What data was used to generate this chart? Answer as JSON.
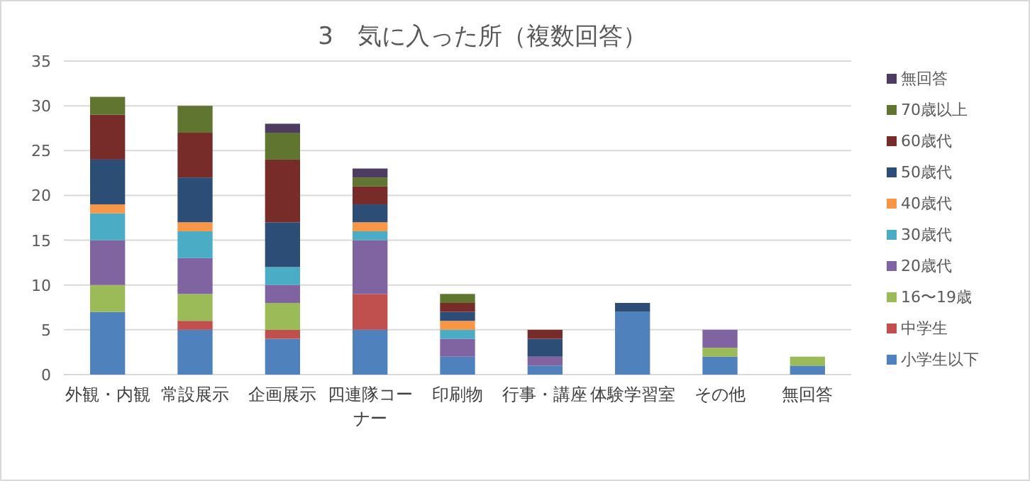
{
  "chart_data": {
    "type": "bar",
    "stacked": true,
    "title": "3　気に入った所（複数回答）",
    "categories": [
      "外観・内観",
      "常設展示",
      "企画展示",
      "四連隊コーナー",
      "印刷物",
      "行事・講座",
      "体験学習室",
      "その他",
      "無回答"
    ],
    "series": [
      {
        "name": "小学生以下",
        "color": "#4f81bd",
        "values": [
          7,
          5,
          4,
          5,
          2,
          1,
          7,
          2,
          1
        ]
      },
      {
        "name": "中学生",
        "color": "#c0504d",
        "values": [
          0,
          1,
          1,
          4,
          0,
          0,
          0,
          0,
          0
        ]
      },
      {
        "name": "16〜19歳",
        "color": "#9bbb59",
        "values": [
          3,
          3,
          3,
          0,
          0,
          0,
          0,
          1,
          1
        ]
      },
      {
        "name": "20歳代",
        "color": "#8064a2",
        "values": [
          5,
          4,
          2,
          6,
          2,
          1,
          0,
          2,
          0
        ]
      },
      {
        "name": "30歳代",
        "color": "#4bacc6",
        "values": [
          3,
          3,
          2,
          1,
          1,
          0,
          0,
          0,
          0
        ]
      },
      {
        "name": "40歳代",
        "color": "#f79646",
        "values": [
          1,
          1,
          0,
          1,
          1,
          0,
          0,
          0,
          0
        ]
      },
      {
        "name": "50歳代",
        "color": "#2c4d75",
        "values": [
          5,
          5,
          5,
          2,
          1,
          2,
          1,
          0,
          0
        ]
      },
      {
        "name": "60歳代",
        "color": "#772c2a",
        "values": [
          5,
          5,
          7,
          2,
          1,
          1,
          0,
          0,
          0
        ]
      },
      {
        "name": "70歳以上",
        "color": "#5f7530",
        "values": [
          2,
          3,
          3,
          1,
          1,
          0,
          0,
          0,
          0
        ]
      },
      {
        "name": "無回答",
        "color": "#4d3b62",
        "values": [
          0,
          0,
          1,
          1,
          0,
          0,
          0,
          0,
          0
        ]
      }
    ],
    "ylim": [
      0,
      35
    ],
    "yticks": [
      0,
      5,
      10,
      15,
      20,
      25,
      30,
      35
    ],
    "grid": "y",
    "legend": "right"
  }
}
